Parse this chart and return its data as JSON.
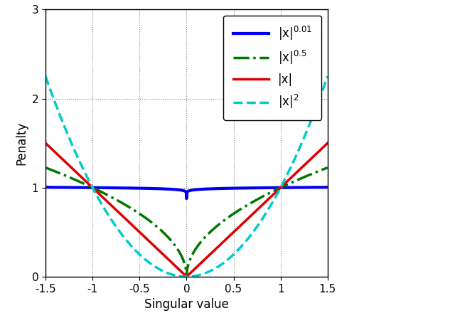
{
  "xlim": [
    -1.5,
    1.5
  ],
  "ylim": [
    0,
    3
  ],
  "xlabel": "Singular value",
  "ylabel": "Penalty",
  "xticks": [
    -1.5,
    -1.0,
    -0.5,
    0.0,
    0.5,
    1.0,
    1.5
  ],
  "yticks": [
    0,
    1,
    2,
    3
  ],
  "lines": [
    {
      "power": 0.01,
      "color": "#0000ee",
      "linestyle": "-",
      "linewidth": 3.0
    },
    {
      "power": 0.5,
      "color": "#007700",
      "linestyle": "-.",
      "linewidth": 2.5
    },
    {
      "power": 1.0,
      "color": "#dd0000",
      "linestyle": "-",
      "linewidth": 2.5
    },
    {
      "power": 2.0,
      "color": "#00cccc",
      "linestyle": "--",
      "linewidth": 2.5
    }
  ],
  "legend_labels": [
    "|x|$^{0.01}$",
    "|x|$^{0.5}$",
    "|x|",
    "|x|$^{2}$"
  ],
  "legend_fontsize": 12,
  "axis_fontsize": 12,
  "tick_fontsize": 11,
  "background_color": "#ffffff",
  "figsize": [
    6.4,
    4.47
  ],
  "dpi": 100
}
